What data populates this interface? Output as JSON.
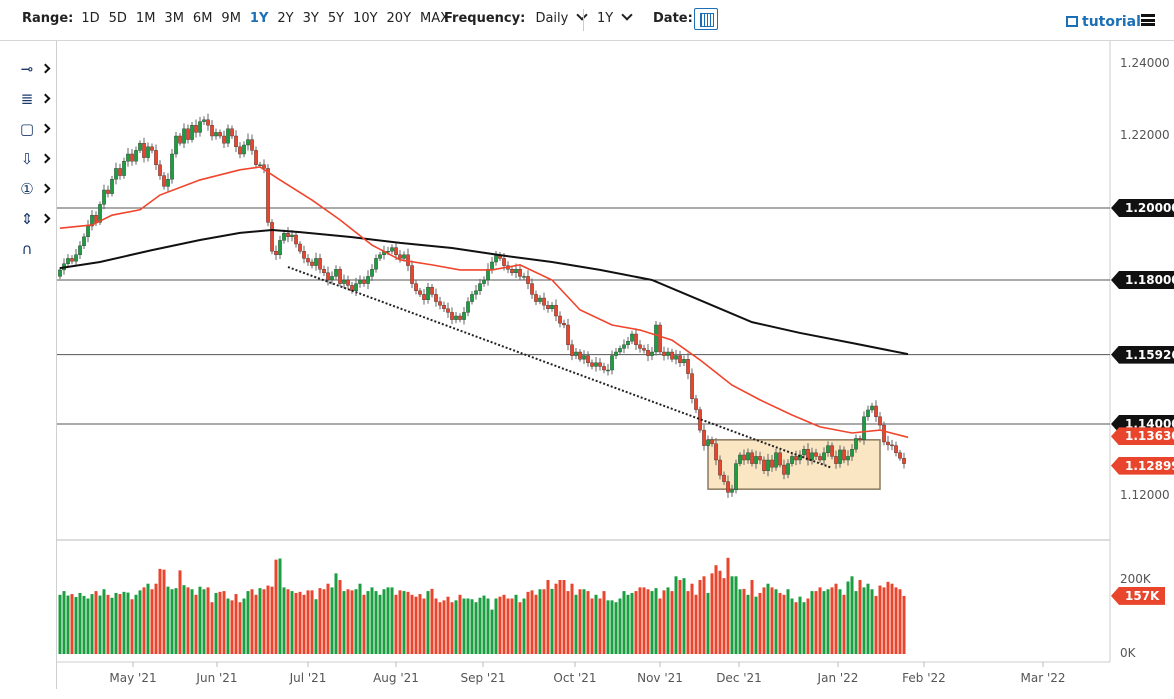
{
  "toolbar": {
    "range_label": "Range:",
    "ranges": [
      "1D",
      "5D",
      "1M",
      "3M",
      "6M",
      "9M",
      "1Y",
      "2Y",
      "3Y",
      "5Y",
      "10Y",
      "20Y",
      "MAX"
    ],
    "active_range": "1Y",
    "frequency_label": "Frequency:",
    "frequency_value": "Daily",
    "period_value": "1Y",
    "date_label": "Date:",
    "tutorial_label": "tutorial"
  },
  "left_tools": [
    "line-tool-icon",
    "fibonacci-tool-icon",
    "rectangle-tool-icon",
    "arrow-down-icon",
    "numbered-marker-icon",
    "measure-tool-icon",
    "magnet-icon"
  ],
  "colors": {
    "up": "#1a9e3f",
    "down": "#e8452c",
    "ma_fast": "#f0452c",
    "ma_slow": "#111111",
    "accent": "#1b6fb5",
    "box_fill": "#fbe6c4"
  },
  "chart_data": {
    "type": "candlestick",
    "frequency": "Daily",
    "price_axis": {
      "range": [
        1.115,
        1.24
      ],
      "ticks": [
        "1.24000",
        "1.22000",
        "1.12000"
      ]
    },
    "x_tick_labels": [
      "May '21",
      "Jun '21",
      "Jul '21",
      "Aug '21",
      "Sep '21",
      "Oct '21",
      "Nov '21",
      "Dec '21",
      "Jan '22",
      "Feb '22",
      "Mar '22"
    ],
    "horizontal_levels": [
      {
        "label": "1.20000",
        "value": 1.2
      },
      {
        "label": "1.18000",
        "value": 1.18
      },
      {
        "label": "1.15926",
        "value": 1.15926
      },
      {
        "label": "1.14000",
        "value": 1.14
      }
    ],
    "last_price_tags": [
      {
        "label": "1.13630",
        "value": 1.1363,
        "meaning": "fast moving average"
      },
      {
        "label": "1.12899",
        "value": 1.12899,
        "meaning": "last close"
      }
    ],
    "closes": [
      1.1828,
      1.1845,
      1.186,
      1.1852,
      1.187,
      1.1895,
      1.192,
      1.195,
      1.198,
      1.196,
      1.201,
      1.205,
      1.204,
      1.208,
      1.211,
      1.209,
      1.213,
      1.215,
      1.213,
      1.216,
      1.218,
      1.214,
      1.217,
      1.216,
      1.212,
      1.209,
      1.206,
      1.208,
      1.215,
      1.22,
      1.218,
      1.222,
      1.219,
      1.223,
      1.221,
      1.224,
      1.2245,
      1.223,
      1.22,
      1.221,
      1.22,
      1.218,
      1.222,
      1.22,
      1.217,
      1.215,
      1.2175,
      1.219,
      1.216,
      1.212,
      1.212,
      1.211,
      1.196,
      1.188,
      1.187,
      1.191,
      1.193,
      1.192,
      1.1925,
      1.19,
      1.188,
      1.186,
      1.185,
      1.184,
      1.186,
      1.183,
      1.182,
      1.18,
      1.181,
      1.183,
      1.179,
      1.18,
      1.1785,
      1.177,
      1.179,
      1.18,
      1.179,
      1.181,
      1.183,
      1.186,
      1.187,
      1.188,
      1.188,
      1.189,
      1.187,
      1.186,
      1.187,
      1.184,
      1.179,
      1.177,
      1.176,
      1.1745,
      1.178,
      1.176,
      1.174,
      1.173,
      1.172,
      1.171,
      1.169,
      1.17,
      1.169,
      1.171,
      1.174,
      1.176,
      1.177,
      1.179,
      1.18,
      1.183,
      1.185,
      1.187,
      1.186,
      1.184,
      1.183,
      1.182,
      1.183,
      1.181,
      1.181,
      1.179,
      1.176,
      1.174,
      1.175,
      1.173,
      1.172,
      1.173,
      1.17,
      1.168,
      1.1675,
      1.162,
      1.159,
      1.16,
      1.158,
      1.159,
      1.157,
      1.156,
      1.157,
      1.156,
      1.155,
      1.155,
      1.159,
      1.16,
      1.161,
      1.162,
      1.163,
      1.165,
      1.162,
      1.161,
      1.1605,
      1.159,
      1.16,
      1.1675,
      1.16,
      1.159,
      1.16,
      1.158,
      1.159,
      1.157,
      1.158,
      1.154,
      1.147,
      1.144,
      1.1383,
      1.134,
      1.1356,
      1.1345,
      1.13,
      1.1258,
      1.124,
      1.121,
      1.1217,
      1.129,
      1.1314,
      1.13,
      1.132,
      1.129,
      1.131,
      1.13,
      1.127,
      1.13,
      1.128,
      1.132,
      1.1286,
      1.126,
      1.129,
      1.131,
      1.13,
      1.1314,
      1.133,
      1.13,
      1.132,
      1.131,
      1.13,
      1.132,
      1.134,
      1.131,
      1.129,
      1.1328,
      1.13,
      1.131,
      1.133,
      1.136,
      1.1356,
      1.142,
      1.1439,
      1.145,
      1.142,
      1.1397,
      1.135,
      1.1342,
      1.134,
      1.132,
      1.1305,
      1.12899
    ],
    "ma_fast": [
      [
        0,
        1.1944
      ],
      [
        8,
        1.1953
      ],
      [
        13,
        1.198
      ],
      [
        20,
        1.1995
      ],
      [
        25,
        1.2036
      ],
      [
        35,
        1.2078
      ],
      [
        45,
        1.2106
      ],
      [
        50,
        1.2114
      ],
      [
        55,
        1.2078
      ],
      [
        63,
        1.2022
      ],
      [
        70,
        1.1967
      ],
      [
        78,
        1.1897
      ],
      [
        85,
        1.1856
      ],
      [
        93,
        1.1842
      ],
      [
        100,
        1.1828
      ],
      [
        108,
        1.1828
      ],
      [
        115,
        1.1842
      ],
      [
        123,
        1.18
      ],
      [
        130,
        1.1717
      ],
      [
        138,
        1.1675
      ],
      [
        145,
        1.1661
      ],
      [
        153,
        1.1633
      ],
      [
        160,
        1.1578
      ],
      [
        168,
        1.1508
      ],
      [
        175,
        1.1467
      ],
      [
        183,
        1.1425
      ],
      [
        190,
        1.1392
      ],
      [
        198,
        1.1375
      ],
      [
        205,
        1.1383
      ],
      [
        212,
        1.1363
      ]
    ],
    "ma_slow": [
      [
        0,
        1.1833
      ],
      [
        10,
        1.185
      ],
      [
        23,
        1.1883
      ],
      [
        35,
        1.1911
      ],
      [
        45,
        1.1931
      ],
      [
        53,
        1.1939
      ],
      [
        60,
        1.1933
      ],
      [
        73,
        1.1919
      ],
      [
        85,
        1.1903
      ],
      [
        98,
        1.1889
      ],
      [
        110,
        1.1869
      ],
      [
        123,
        1.185
      ],
      [
        135,
        1.1828
      ],
      [
        148,
        1.18
      ],
      [
        160,
        1.1744
      ],
      [
        173,
        1.1683
      ],
      [
        185,
        1.1653
      ],
      [
        198,
        1.1625
      ],
      [
        212,
        1.1594
      ]
    ],
    "trendline": {
      "style": "dotted",
      "from": [
        57,
        1.1836
      ],
      "to": [
        193,
        1.1278
      ]
    },
    "range_box": {
      "from_bar": 162,
      "to_bar": 205,
      "top": 1.1356,
      "bottom": 1.1219
    },
    "volume": {
      "axis_ticks": [
        "200K",
        "0K"
      ],
      "range": [
        0,
        290
      ],
      "last_label": "157K",
      "values_k": [
        160,
        170,
        158,
        162,
        154,
        165,
        157,
        150,
        162,
        170,
        158,
        175,
        160,
        152,
        165,
        162,
        168,
        166,
        148,
        160,
        172,
        180,
        190,
        175,
        190,
        230,
        228,
        182,
        175,
        178,
        226,
        186,
        180,
        175,
        160,
        182,
        175,
        180,
        140,
        165,
        168,
        170,
        150,
        145,
        162,
        140,
        150,
        170,
        175,
        160,
        178,
        175,
        185,
        182,
        255,
        258,
        180,
        175,
        170,
        165,
        168,
        160,
        172,
        172,
        148,
        178,
        175,
        190,
        180,
        218,
        200,
        170,
        175,
        172,
        175,
        190,
        160,
        170,
        180,
        170,
        160,
        175,
        180,
        180,
        160,
        172,
        170,
        168,
        160,
        155,
        162,
        150,
        170,
        176,
        150,
        140,
        145,
        155,
        140,
        145,
        160,
        150,
        150,
        148,
        140,
        152,
        158,
        150,
        120,
        150,
        155,
        160,
        150,
        150,
        160,
        140,
        150,
        168,
        172,
        160,
        175,
        175,
        200,
        176,
        190,
        200,
        200,
        170,
        190,
        160,
        175,
        175,
        170,
        150,
        160,
        150,
        170,
        145,
        145,
        140,
        150,
        170,
        160,
        165,
        170,
        180,
        180,
        175,
        170,
        178,
        150,
        172,
        180,
        170,
        210,
        200,
        205,
        170,
        190,
        160,
        200,
        210,
        165,
        218,
        240,
        225,
        205,
        260,
        210,
        210,
        175,
        176,
        160,
        200,
        155,
        165,
        180,
        190,
        180,
        175,
        165,
        160,
        175,
        150,
        140,
        155,
        140,
        150,
        170,
        170,
        180,
        170,
        175,
        180,
        190,
        175,
        160,
        196,
        210,
        170,
        200,
        180,
        190,
        175,
        157,
        185,
        180,
        195,
        190,
        180,
        175,
        157
      ]
    }
  }
}
